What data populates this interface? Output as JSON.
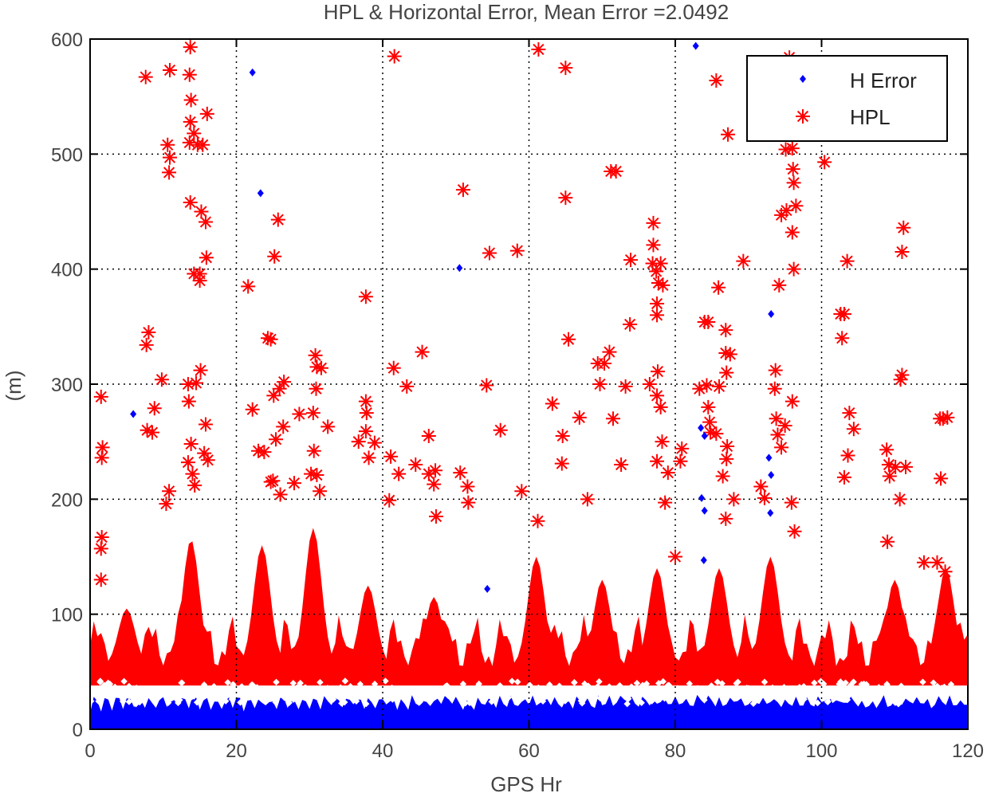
{
  "chart_data": {
    "type": "scatter",
    "title": "HPL & Horizontal Error,  Mean Error =2.0492",
    "xlabel": "GPS Hr",
    "ylabel": "(m)",
    "xlim": [
      0,
      120
    ],
    "ylim": [
      0,
      600
    ],
    "xticks": [
      0,
      20,
      40,
      60,
      80,
      100,
      120
    ],
    "yticks": [
      0,
      100,
      200,
      300,
      400,
      500,
      600
    ],
    "grid": true,
    "legend": "top-right",
    "series": [
      {
        "name": "H Error",
        "marker": "diamond",
        "color": "#0000ff",
        "points": [
          [
            5.9,
            274
          ],
          [
            22.2,
            571
          ],
          [
            23.3,
            466
          ],
          [
            50.5,
            401
          ],
          [
            54.3,
            122
          ],
          [
            82.8,
            594
          ],
          [
            83.5,
            262
          ],
          [
            84.0,
            255
          ],
          [
            83.6,
            201
          ],
          [
            84.0,
            190
          ],
          [
            83.9,
            147
          ],
          [
            92.8,
            236
          ],
          [
            93.1,
            221
          ],
          [
            93.0,
            188
          ],
          [
            93.1,
            361
          ]
        ]
      },
      {
        "name": "HPL",
        "marker": "asterisk",
        "color": "#ff0000",
        "points": [
          [
            1.5,
            289
          ],
          [
            1.7,
            245
          ],
          [
            1.6,
            236
          ],
          [
            1.6,
            167
          ],
          [
            1.5,
            157
          ],
          [
            1.5,
            130
          ],
          [
            7.6,
            567
          ],
          [
            8.0,
            345
          ],
          [
            7.7,
            334
          ],
          [
            7.8,
            260
          ],
          [
            8.5,
            258
          ],
          [
            8.8,
            279
          ],
          [
            9.8,
            304
          ],
          [
            10.4,
            196
          ],
          [
            10.8,
            207
          ],
          [
            10.6,
            508
          ],
          [
            10.9,
            497
          ],
          [
            10.8,
            484
          ],
          [
            10.9,
            573
          ],
          [
            13.7,
            593
          ],
          [
            13.6,
            569
          ],
          [
            13.8,
            547
          ],
          [
            13.7,
            528
          ],
          [
            13.6,
            510
          ],
          [
            14.7,
            508
          ],
          [
            15.4,
            508
          ],
          [
            14.2,
            518
          ],
          [
            13.7,
            458
          ],
          [
            14.2,
            396
          ],
          [
            15.0,
            396
          ],
          [
            15.2,
            450
          ],
          [
            15.8,
            441
          ],
          [
            15.9,
            410
          ],
          [
            15.0,
            390
          ],
          [
            16.0,
            535
          ],
          [
            13.4,
            300
          ],
          [
            14.5,
            301
          ],
          [
            15.1,
            312
          ],
          [
            13.5,
            285
          ],
          [
            13.8,
            248
          ],
          [
            13.4,
            232
          ],
          [
            14.0,
            222
          ],
          [
            14.3,
            212
          ],
          [
            15.6,
            240
          ],
          [
            15.8,
            265
          ],
          [
            16.1,
            234
          ],
          [
            21.6,
            385
          ],
          [
            22.2,
            278
          ],
          [
            24.3,
            340
          ],
          [
            24.7,
            339
          ],
          [
            25.2,
            411
          ],
          [
            25.7,
            443
          ],
          [
            25.1,
            290
          ],
          [
            25.9,
            296
          ],
          [
            26.5,
            302
          ],
          [
            26.4,
            263
          ],
          [
            25.4,
            252
          ],
          [
            23.8,
            241
          ],
          [
            23.0,
            242
          ],
          [
            24.7,
            215
          ],
          [
            25.0,
            216
          ],
          [
            26.0,
            204
          ],
          [
            30.8,
            325
          ],
          [
            31.0,
            315
          ],
          [
            30.9,
            296
          ],
          [
            31.6,
            314
          ],
          [
            30.5,
            275
          ],
          [
            30.6,
            242
          ],
          [
            31.0,
            221
          ],
          [
            30.2,
            222
          ],
          [
            31.4,
            207
          ],
          [
            32.5,
            263
          ],
          [
            28.6,
            274
          ],
          [
            27.9,
            214
          ],
          [
            37.7,
            376
          ],
          [
            37.7,
            285
          ],
          [
            37.8,
            275
          ],
          [
            37.7,
            259
          ],
          [
            36.7,
            250
          ],
          [
            38.9,
            249
          ],
          [
            38.1,
            236
          ],
          [
            41.6,
            585
          ],
          [
            41.5,
            314
          ],
          [
            41.1,
            237
          ],
          [
            42.2,
            222
          ],
          [
            40.9,
            199
          ],
          [
            43.3,
            298
          ],
          [
            45.4,
            328
          ],
          [
            46.3,
            255
          ],
          [
            47.2,
            225
          ],
          [
            47.0,
            213
          ],
          [
            47.3,
            185
          ],
          [
            44.5,
            230
          ],
          [
            46.3,
            222
          ],
          [
            51.0,
            469
          ],
          [
            50.6,
            223
          ],
          [
            51.6,
            211
          ],
          [
            51.7,
            197
          ],
          [
            54.2,
            299
          ],
          [
            54.6,
            414
          ],
          [
            56.1,
            260
          ],
          [
            58.4,
            416
          ],
          [
            59.0,
            207
          ],
          [
            61.3,
            591
          ],
          [
            61.2,
            181
          ],
          [
            63.2,
            283
          ],
          [
            64.5,
            231
          ],
          [
            64.6,
            255
          ],
          [
            65.0,
            462
          ],
          [
            65.0,
            575
          ],
          [
            65.4,
            339
          ],
          [
            66.9,
            271
          ],
          [
            68.0,
            200
          ],
          [
            69.4,
            318
          ],
          [
            69.7,
            300
          ],
          [
            70.3,
            318
          ],
          [
            71.2,
            485
          ],
          [
            71.9,
            485
          ],
          [
            71.0,
            328
          ],
          [
            71.5,
            270
          ],
          [
            72.6,
            230
          ],
          [
            73.2,
            298
          ],
          [
            73.8,
            352
          ],
          [
            73.9,
            408
          ],
          [
            77.0,
            440
          ],
          [
            77.0,
            421
          ],
          [
            76.9,
            405
          ],
          [
            77.4,
            398
          ],
          [
            77.7,
            388
          ],
          [
            77.5,
            370
          ],
          [
            77.5,
            360
          ],
          [
            78.0,
            405
          ],
          [
            78.3,
            386
          ],
          [
            77.6,
            311
          ],
          [
            76.5,
            300
          ],
          [
            77.5,
            290
          ],
          [
            78.0,
            280
          ],
          [
            78.2,
            250
          ],
          [
            77.5,
            233
          ],
          [
            78.6,
            197
          ],
          [
            79.0,
            223
          ],
          [
            80.9,
            244
          ],
          [
            80.7,
            233
          ],
          [
            80.0,
            150
          ],
          [
            84.0,
            354
          ],
          [
            84.5,
            354
          ],
          [
            84.3,
            299
          ],
          [
            84.5,
            280
          ],
          [
            84.7,
            267
          ],
          [
            84.8,
            258
          ],
          [
            85.6,
            257
          ],
          [
            85.6,
            564
          ],
          [
            85.9,
            384
          ],
          [
            83.3,
            296
          ],
          [
            86.0,
            298
          ],
          [
            86.5,
            220
          ],
          [
            87.2,
            517
          ],
          [
            86.9,
            347
          ],
          [
            86.9,
            327
          ],
          [
            87.0,
            310
          ],
          [
            87.5,
            326
          ],
          [
            87.1,
            246
          ],
          [
            87.0,
            235
          ],
          [
            88.0,
            200
          ],
          [
            86.9,
            183
          ],
          [
            89.3,
            407
          ],
          [
            91.7,
            211
          ],
          [
            92.2,
            201
          ],
          [
            93.7,
            312
          ],
          [
            93.6,
            296
          ],
          [
            93.8,
            270
          ],
          [
            94.0,
            256
          ],
          [
            94.5,
            245
          ],
          [
            94.2,
            386
          ],
          [
            94.5,
            447
          ],
          [
            95.2,
            451
          ],
          [
            95.1,
            504
          ],
          [
            96.0,
            505
          ],
          [
            96.1,
            487
          ],
          [
            96.2,
            475
          ],
          [
            96.5,
            455
          ],
          [
            96.0,
            432
          ],
          [
            96.2,
            400
          ],
          [
            95.6,
            584
          ],
          [
            95.0,
            264
          ],
          [
            96.0,
            285
          ],
          [
            95.9,
            197
          ],
          [
            96.3,
            172
          ],
          [
            100.4,
            493
          ],
          [
            102.6,
            361
          ],
          [
            103.1,
            361
          ],
          [
            102.8,
            340
          ],
          [
            103.5,
            407
          ],
          [
            103.8,
            275
          ],
          [
            104.4,
            261
          ],
          [
            103.6,
            238
          ],
          [
            103.1,
            219
          ],
          [
            108.9,
            243
          ],
          [
            109.2,
            230
          ],
          [
            109.3,
            220
          ],
          [
            110.1,
            228
          ],
          [
            109.0,
            163
          ],
          [
            110.7,
            200
          ],
          [
            110.8,
            304
          ],
          [
            111.0,
            308
          ],
          [
            111.2,
            436
          ],
          [
            111.0,
            415
          ],
          [
            111.5,
            228
          ],
          [
            116.2,
            270
          ],
          [
            116.6,
            270
          ],
          [
            117.2,
            271
          ],
          [
            116.3,
            218
          ],
          [
            115.8,
            145
          ],
          [
            116.9,
            137
          ],
          [
            114.0,
            145
          ]
        ]
      }
    ],
    "legend_entries": [
      "H Error",
      "HPL"
    ]
  }
}
